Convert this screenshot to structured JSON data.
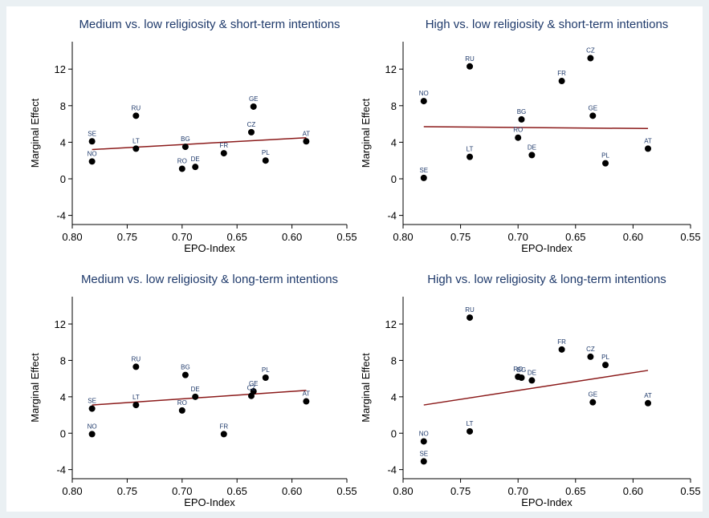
{
  "chart_data": [
    {
      "type": "scatter",
      "title": "Medium vs. low religiosity & short-term intentions",
      "xlabel": "EPO-Index",
      "ylabel": "Marginal Effect",
      "xlim": [
        0.8,
        0.55
      ],
      "x_reversed": true,
      "ylim": [
        -5,
        15
      ],
      "xticks": [
        "0.80",
        "0.75",
        "0.70",
        "0.65",
        "0.60",
        "0.55"
      ],
      "yticks": [
        "-4",
        "0",
        "4",
        "8",
        "12"
      ],
      "grid": false,
      "points": [
        {
          "label": "SE",
          "x": 0.782,
          "y": 4.1
        },
        {
          "label": "NO",
          "x": 0.782,
          "y": 1.9
        },
        {
          "label": "RU",
          "x": 0.742,
          "y": 6.9
        },
        {
          "label": "LT",
          "x": 0.742,
          "y": 3.3
        },
        {
          "label": "BG",
          "x": 0.697,
          "y": 3.5
        },
        {
          "label": "RO",
          "x": 0.7,
          "y": 1.1
        },
        {
          "label": "DE",
          "x": 0.688,
          "y": 1.3
        },
        {
          "label": "FR",
          "x": 0.662,
          "y": 2.8
        },
        {
          "label": "GE",
          "x": 0.635,
          "y": 7.9
        },
        {
          "label": "CZ",
          "x": 0.637,
          "y": 5.1
        },
        {
          "label": "PL",
          "x": 0.624,
          "y": 2.0
        },
        {
          "label": "AT",
          "x": 0.587,
          "y": 4.1
        }
      ],
      "fit_line": {
        "x": [
          0.782,
          0.587
        ],
        "y": [
          3.2,
          4.5
        ]
      }
    },
    {
      "type": "scatter",
      "title": "High vs. low religiosity & short-term intentions",
      "xlabel": "EPO-Index",
      "ylabel": "Marginal Effect",
      "xlim": [
        0.8,
        0.55
      ],
      "x_reversed": true,
      "ylim": [
        -5,
        15
      ],
      "xticks": [
        "0.80",
        "0.75",
        "0.70",
        "0.65",
        "0.60",
        "0.55"
      ],
      "yticks": [
        "-4",
        "0",
        "4",
        "8",
        "12"
      ],
      "grid": false,
      "points": [
        {
          "label": "NO",
          "x": 0.782,
          "y": 8.5
        },
        {
          "label": "SE",
          "x": 0.782,
          "y": 0.1
        },
        {
          "label": "RU",
          "x": 0.742,
          "y": 12.3
        },
        {
          "label": "LT",
          "x": 0.742,
          "y": 2.4
        },
        {
          "label": "BG",
          "x": 0.697,
          "y": 6.5
        },
        {
          "label": "RO",
          "x": 0.7,
          "y": 4.5
        },
        {
          "label": "DE",
          "x": 0.688,
          "y": 2.6
        },
        {
          "label": "FR",
          "x": 0.662,
          "y": 10.7
        },
        {
          "label": "CZ",
          "x": 0.637,
          "y": 13.2
        },
        {
          "label": "GE",
          "x": 0.635,
          "y": 6.9
        },
        {
          "label": "PL",
          "x": 0.624,
          "y": 1.7
        },
        {
          "label": "AT",
          "x": 0.587,
          "y": 3.3
        }
      ],
      "fit_line": {
        "x": [
          0.782,
          0.587
        ],
        "y": [
          5.7,
          5.5
        ]
      }
    },
    {
      "type": "scatter",
      "title": "Medium vs. low religiosity & long-term intentions",
      "xlabel": "EPO-Index",
      "ylabel": "Marginal Effect",
      "xlim": [
        0.8,
        0.55
      ],
      "x_reversed": true,
      "ylim": [
        -5,
        15
      ],
      "xticks": [
        "0.80",
        "0.75",
        "0.70",
        "0.65",
        "0.60",
        "0.55"
      ],
      "yticks": [
        "-4",
        "0",
        "4",
        "8",
        "12"
      ],
      "grid": false,
      "points": [
        {
          "label": "SE",
          "x": 0.782,
          "y": 2.7
        },
        {
          "label": "NO",
          "x": 0.782,
          "y": -0.1
        },
        {
          "label": "RU",
          "x": 0.742,
          "y": 7.3
        },
        {
          "label": "LT",
          "x": 0.742,
          "y": 3.1
        },
        {
          "label": "BG",
          "x": 0.697,
          "y": 6.4
        },
        {
          "label": "RO",
          "x": 0.7,
          "y": 2.5
        },
        {
          "label": "DE",
          "x": 0.688,
          "y": 4.0
        },
        {
          "label": "FR",
          "x": 0.662,
          "y": -0.1
        },
        {
          "label": "GE",
          "x": 0.635,
          "y": 4.6
        },
        {
          "label": "CZ",
          "x": 0.637,
          "y": 4.1
        },
        {
          "label": "PL",
          "x": 0.624,
          "y": 6.1
        },
        {
          "label": "AT",
          "x": 0.587,
          "y": 3.5
        }
      ],
      "fit_line": {
        "x": [
          0.782,
          0.587
        ],
        "y": [
          3.1,
          4.7
        ]
      }
    },
    {
      "type": "scatter",
      "title": "High vs. low religiosity & long-term intentions",
      "xlabel": "EPO-Index",
      "ylabel": "Marginal Effect",
      "xlim": [
        0.8,
        0.55
      ],
      "x_reversed": true,
      "ylim": [
        -5,
        15
      ],
      "xticks": [
        "0.80",
        "0.75",
        "0.70",
        "0.65",
        "0.60",
        "0.55"
      ],
      "yticks": [
        "-4",
        "0",
        "4",
        "8",
        "12"
      ],
      "grid": false,
      "points": [
        {
          "label": "NO",
          "x": 0.782,
          "y": -0.9
        },
        {
          "label": "SE",
          "x": 0.782,
          "y": -3.1
        },
        {
          "label": "RU",
          "x": 0.742,
          "y": 12.7
        },
        {
          "label": "LT",
          "x": 0.742,
          "y": 0.2
        },
        {
          "label": "RO",
          "x": 0.7,
          "y": 6.2
        },
        {
          "label": "BG",
          "x": 0.697,
          "y": 6.1
        },
        {
          "label": "DE",
          "x": 0.688,
          "y": 5.8
        },
        {
          "label": "FR",
          "x": 0.662,
          "y": 9.2
        },
        {
          "label": "CZ",
          "x": 0.637,
          "y": 8.4
        },
        {
          "label": "PL",
          "x": 0.624,
          "y": 7.5
        },
        {
          "label": "GE",
          "x": 0.635,
          "y": 3.4
        },
        {
          "label": "AT",
          "x": 0.587,
          "y": 3.3
        }
      ],
      "fit_line": {
        "x": [
          0.782,
          0.587
        ],
        "y": [
          3.1,
          6.9
        ]
      }
    }
  ],
  "colors": {
    "background": "#eaf0f3",
    "panel_bg": "#ffffff",
    "title": "#1f3a6b",
    "point_label": "#1f3a6b",
    "point": "#000000",
    "fit_line": "#8b1a1a",
    "axis": "#000000"
  }
}
